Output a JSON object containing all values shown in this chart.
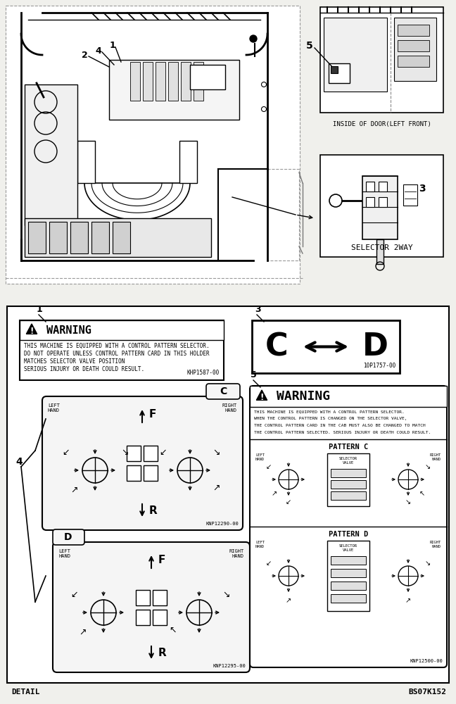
{
  "bg_color": "#f0f0ec",
  "white": "#ffffff",
  "black": "#000000",
  "title_bottom_left": "DETAIL",
  "title_bottom_right": "BS07K152",
  "label_inside_door": "INSIDE OF DOOR(LEFT FRONT)",
  "label_selector": "SELECTOR 2WAY",
  "warning_text_1a": "THIS MACHINE IS EQUIPPED WITH A CONTROL PATTERN SELECTOR.",
  "warning_text_1b": "DO NOT OPERATE UNLESS CONTROL PATTERN CARD IN THIS HOLDER",
  "warning_text_1c": "MATCHES SELECTOR VALVE POSITION",
  "warning_text_1d": "SERIOUS INJURY OR DEATH COULD RESULT.",
  "warning_code_1": "KHP1587-00",
  "warning_text_5a": "THIS MACHINE IS EQUIPPED WITH A CONTROL PATTERN SELECTOR.",
  "warning_text_5b": "WHEN THE CONTROL PATTERN IS CHANGED ON THE SELECTOR VALVE,",
  "warning_text_5c": "THE CONTROL PATTERN CARD IN THE CAB MUST ALSO BE CHANGED TO MATCH",
  "warning_text_5d": "THE CONTROL PATTERN SELECTED. SERIOUS INJURY OR DEATH COULD RESULT.",
  "warning_code_5": "KNP12500-00",
  "label_c_d_code": "10P1757-00",
  "label_pattern_c": "PATTERN C",
  "label_pattern_d": "PATTERN D",
  "label_selector_valve_c": "SELECTOR\nVALVE",
  "label_selector_valve_d": "SELECTOR\nVALVE",
  "code_pattern_c": "KNP12290-00",
  "code_pattern_d": "KNP12295-00"
}
